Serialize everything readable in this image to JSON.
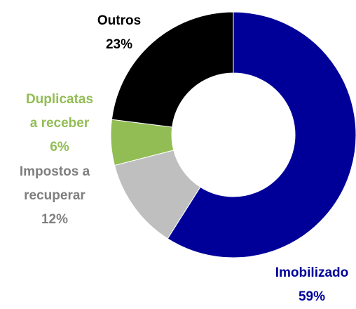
{
  "chart_data": {
    "type": "donut",
    "categories": [
      "Imobilizado",
      "Impostos a recuperar",
      "Duplicatas a receber",
      "Outros"
    ],
    "values": [
      59,
      12,
      6,
      23
    ],
    "value_labels": [
      "59%",
      "12%",
      "6%",
      "23%"
    ],
    "colors": [
      "#000099",
      "#bfbfbf",
      "#92bd55",
      "#000000"
    ],
    "label_colors": [
      "#000099",
      "#7f7f7f",
      "#92bd55",
      "#000000"
    ]
  }
}
